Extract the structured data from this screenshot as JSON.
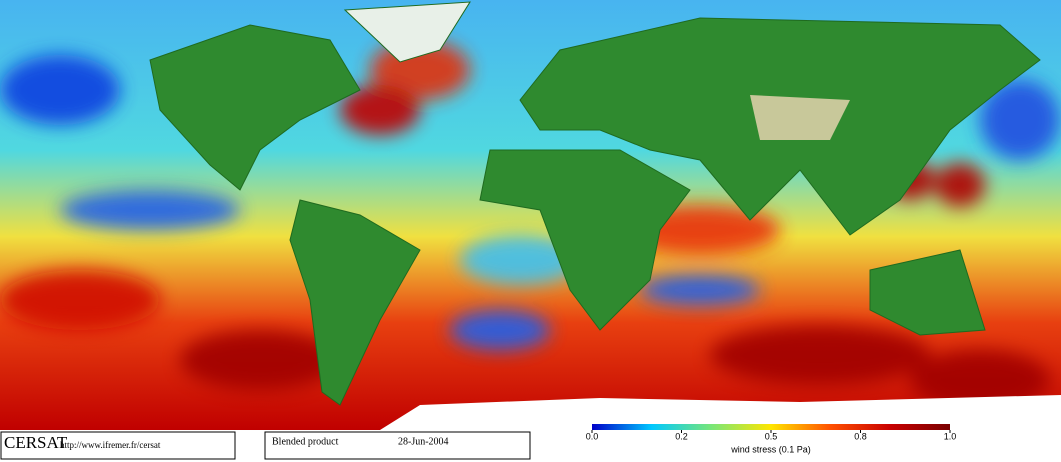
{
  "map": {
    "colorbar": {
      "ticks": [
        {
          "value": 0,
          "label": "0.0"
        },
        0.2,
        0.5,
        0.8,
        {
          "value": 1,
          "label": "1.0"
        }
      ],
      "label": "wind stress (0.1 Pa)",
      "colors": [
        "#0000c8",
        "#00c8ff",
        "#78e678",
        "#ffe600",
        "#ff5000",
        "#c80000",
        "#780000"
      ]
    }
  },
  "footer": {
    "logo": "CERSAT",
    "url": "http://www.ifremer.fr/cersat",
    "product": "Blended product",
    "date": "28-Jun-2004"
  }
}
